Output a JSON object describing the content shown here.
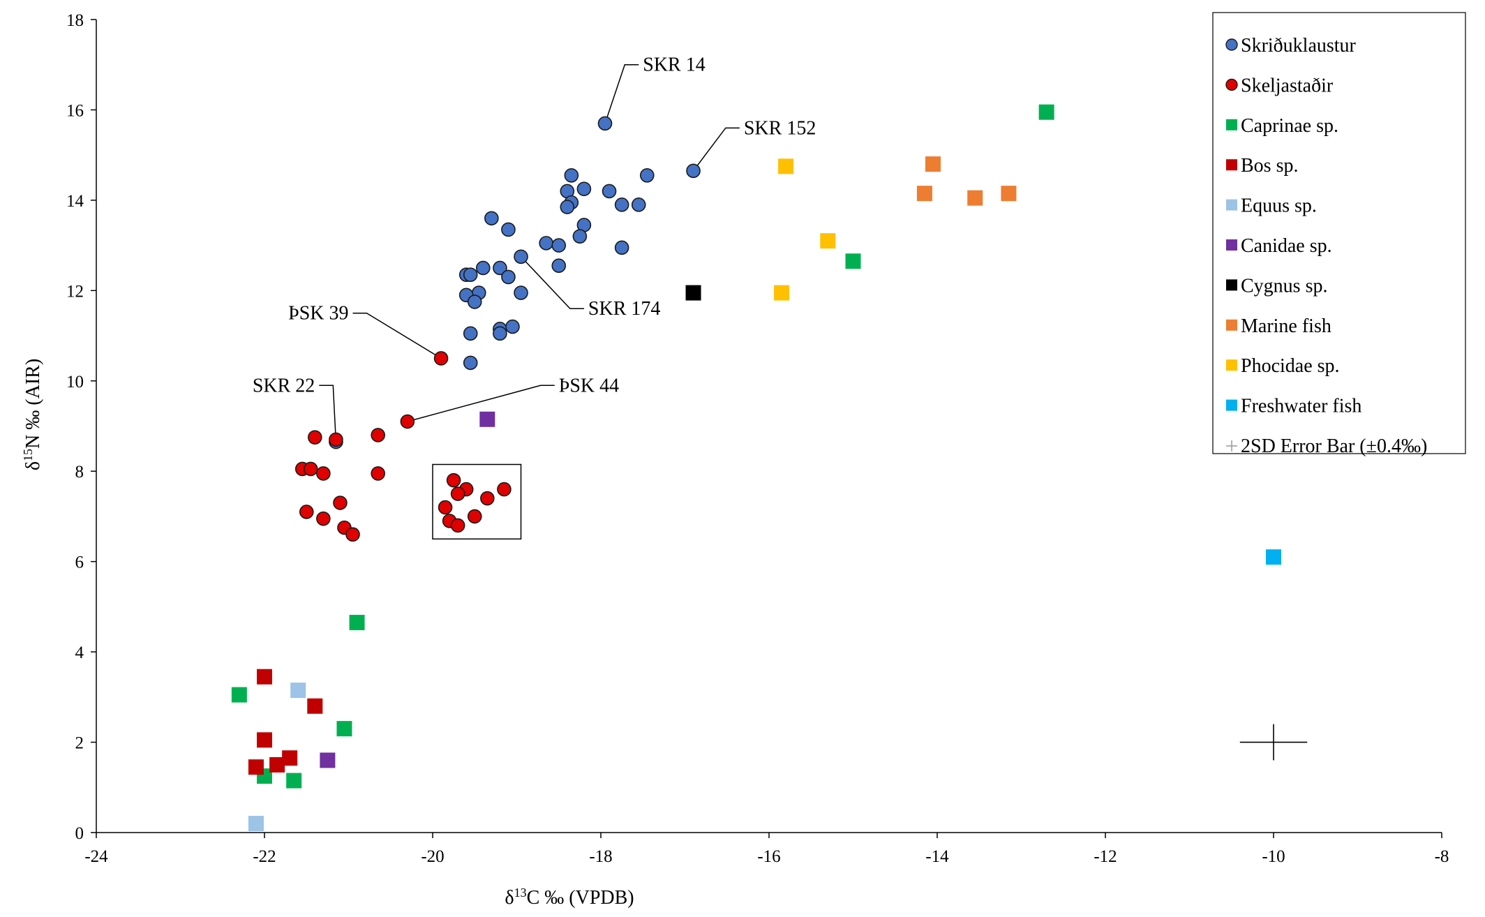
{
  "chart_data": {
    "type": "scatter",
    "xlabel": "δ13C ‰ (VPDB)",
    "ylabel": "δ15N ‰ (AIR)",
    "xlim": [
      -24,
      -8
    ],
    "ylim": [
      0,
      18
    ],
    "xticks": [
      -24,
      -22,
      -20,
      -18,
      -16,
      -14,
      -12,
      -10,
      -8
    ],
    "yticks": [
      0,
      2,
      4,
      6,
      8,
      10,
      12,
      14,
      16,
      18
    ],
    "grid": false,
    "legend_position": "top-right",
    "series": [
      {
        "name": "Skriðuklaustur",
        "marker": "circle",
        "color": "#4472C4",
        "points": [
          [
            -17.95,
            15.7
          ],
          [
            -16.9,
            14.65
          ],
          [
            -18.35,
            14.55
          ],
          [
            -17.45,
            14.55
          ],
          [
            -18.4,
            14.2
          ],
          [
            -18.2,
            14.25
          ],
          [
            -17.9,
            14.2
          ],
          [
            -18.35,
            13.95
          ],
          [
            -18.4,
            13.85
          ],
          [
            -17.75,
            13.9
          ],
          [
            -17.55,
            13.9
          ],
          [
            -19.3,
            13.6
          ],
          [
            -19.1,
            13.35
          ],
          [
            -18.2,
            13.45
          ],
          [
            -18.25,
            13.2
          ],
          [
            -18.65,
            13.05
          ],
          [
            -18.5,
            13.0
          ],
          [
            -17.75,
            12.95
          ],
          [
            -18.95,
            12.75
          ],
          [
            -18.5,
            12.55
          ],
          [
            -19.4,
            12.5
          ],
          [
            -19.2,
            12.5
          ],
          [
            -19.1,
            12.3
          ],
          [
            -19.6,
            12.35
          ],
          [
            -19.55,
            12.35
          ],
          [
            -18.95,
            11.95
          ],
          [
            -19.45,
            11.95
          ],
          [
            -19.6,
            11.9
          ],
          [
            -19.5,
            11.75
          ],
          [
            -19.2,
            11.15
          ],
          [
            -19.2,
            11.05
          ],
          [
            -19.05,
            11.2
          ],
          [
            -19.55,
            11.05
          ],
          [
            -19.55,
            10.4
          ],
          [
            -21.15,
            8.65
          ]
        ]
      },
      {
        "name": "Skeljastaðir",
        "marker": "circle",
        "color": "#E00000",
        "points": [
          [
            -19.9,
            10.5
          ],
          [
            -20.3,
            9.1
          ],
          [
            -20.65,
            8.8
          ],
          [
            -21.15,
            8.7
          ],
          [
            -21.4,
            8.75
          ],
          [
            -21.55,
            8.05
          ],
          [
            -21.45,
            8.05
          ],
          [
            -21.3,
            7.95
          ],
          [
            -20.65,
            7.95
          ],
          [
            -21.1,
            7.3
          ],
          [
            -21.5,
            7.1
          ],
          [
            -21.3,
            6.95
          ],
          [
            -21.05,
            6.75
          ],
          [
            -20.95,
            6.6
          ],
          [
            -19.75,
            7.8
          ],
          [
            -19.6,
            7.6
          ],
          [
            -19.7,
            7.5
          ],
          [
            -19.15,
            7.6
          ],
          [
            -19.35,
            7.4
          ],
          [
            -19.85,
            7.2
          ],
          [
            -19.8,
            6.9
          ],
          [
            -19.7,
            6.8
          ],
          [
            -19.5,
            7.0
          ]
        ]
      },
      {
        "name": "Caprinae sp.",
        "marker": "square",
        "color": "#00B050",
        "points": [
          [
            -12.7,
            15.95
          ],
          [
            -15.0,
            12.65
          ],
          [
            -20.9,
            4.65
          ],
          [
            -22.3,
            3.05
          ],
          [
            -21.05,
            2.3
          ],
          [
            -22.0,
            1.25
          ],
          [
            -21.65,
            1.15
          ]
        ]
      },
      {
        "name": "Bos sp.",
        "marker": "square",
        "color": "#C00000",
        "points": [
          [
            -22.0,
            3.45
          ],
          [
            -21.4,
            2.8
          ],
          [
            -22.0,
            2.05
          ],
          [
            -22.1,
            1.45
          ],
          [
            -21.85,
            1.5
          ],
          [
            -21.7,
            1.65
          ]
        ]
      },
      {
        "name": "Equus sp.",
        "marker": "square",
        "color": "#9DC3E6",
        "points": [
          [
            -21.6,
            3.15
          ],
          [
            -22.1,
            0.2
          ]
        ]
      },
      {
        "name": "Canidae sp.",
        "marker": "square",
        "color": "#7030A0",
        "points": [
          [
            -19.35,
            9.15
          ],
          [
            -21.25,
            1.6
          ]
        ]
      },
      {
        "name": "Cygnus sp.",
        "marker": "square",
        "color": "#000000",
        "points": [
          [
            -16.9,
            11.95
          ]
        ]
      },
      {
        "name": "Marine fish",
        "marker": "square",
        "color": "#ED7D31",
        "points": [
          [
            -14.05,
            14.8
          ],
          [
            -14.15,
            14.15
          ],
          [
            -13.55,
            14.05
          ],
          [
            -13.15,
            14.15
          ]
        ]
      },
      {
        "name": "Phocidae sp.",
        "marker": "square",
        "color": "#FFC000",
        "points": [
          [
            -15.8,
            14.75
          ],
          [
            -15.3,
            13.1
          ],
          [
            -15.85,
            11.95
          ]
        ]
      },
      {
        "name": "Freshwater fish",
        "marker": "square",
        "color": "#00B0F0",
        "points": [
          [
            -10.0,
            6.1
          ]
        ]
      }
    ],
    "error_bar": {
      "name": "2SD Error Bar (±0.4‰)",
      "center": [
        -10,
        2
      ],
      "half_width": 0.4
    },
    "annotations": [
      {
        "text": "SKR 14",
        "point": [
          -17.95,
          15.7
        ],
        "label_at": [
          -17.5,
          17.0
        ]
      },
      {
        "text": "SKR 152",
        "point": [
          -16.9,
          14.65
        ],
        "label_at": [
          -16.3,
          15.6
        ]
      },
      {
        "text": "SKR 174",
        "point": [
          -18.95,
          12.75
        ],
        "label_at": [
          -18.15,
          11.6
        ]
      },
      {
        "text": "ÞSK 39",
        "point": [
          -19.9,
          10.5
        ],
        "label_at": [
          -21.0,
          11.5
        ]
      },
      {
        "text": "SKR 22",
        "point": [
          -21.15,
          8.65
        ],
        "label_at": [
          -21.4,
          9.9
        ]
      },
      {
        "text": "ÞSK 44",
        "point": [
          -20.3,
          9.1
        ],
        "label_at": [
          -18.5,
          9.9
        ]
      }
    ],
    "highlight_box": {
      "x0": -20.0,
      "x1": -18.95,
      "y0": 6.5,
      "y1": 8.15
    }
  }
}
